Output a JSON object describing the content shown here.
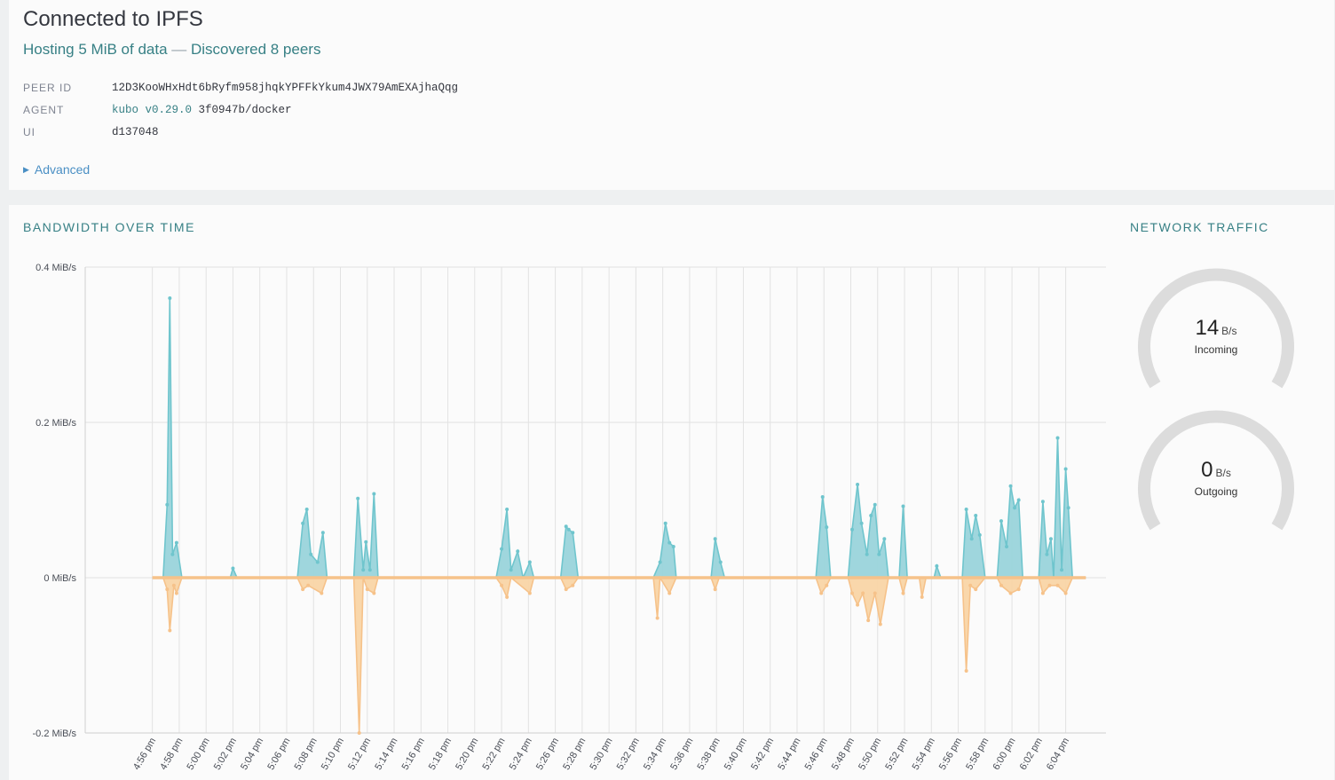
{
  "status": {
    "title": "Connected to IPFS",
    "hosting": "Hosting 5 MiB of data",
    "separator": "—",
    "peers": "Discovered 8 peers",
    "peer_id_key": "PEER ID",
    "peer_id": "12D3KooWHxHdt6bRyfm958jhqkYPFFkYkum4JWX79AmEXAjhaQqg",
    "agent_key": "AGENT",
    "agent_name": "kubo v0.29.0",
    "agent_rest": "3f0947b/docker",
    "ui_key": "UI",
    "ui_value": "d137048",
    "advanced": "Advanced"
  },
  "bandwidth": {
    "title": "BANDWIDTH OVER TIME",
    "colors": {
      "incoming": "#9ad4db",
      "incoming_line": "#6fc5cd",
      "outgoing": "#f9d5a7",
      "outgoing_line": "#f6c28a"
    }
  },
  "traffic": {
    "title": "NETWORK TRAFFIC",
    "incoming": {
      "value": "14",
      "unit": "B/s",
      "label": "Incoming"
    },
    "outgoing": {
      "value": "0",
      "unit": "B/s",
      "label": "Outgoing"
    }
  },
  "chart_data": {
    "type": "area",
    "title": "BANDWIDTH OVER TIME",
    "ylabel": "",
    "ylim": [
      -0.2,
      0.4
    ],
    "yticks": [
      "0.4 MiB/s",
      "0.2 MiB/s",
      "0 MiB/s",
      "-0.2 MiB/s"
    ],
    "ytick_values": [
      0.4,
      0.2,
      0,
      -0.2
    ],
    "xlim_minutes": [
      -5,
      71
    ],
    "xtick_labels": [
      "4:56 pm",
      "4:58 pm",
      "5:00 pm",
      "5:02 pm",
      "5:04 pm",
      "5:06 pm",
      "5:08 pm",
      "5:10 pm",
      "5:12 pm",
      "5:14 pm",
      "5:16 pm",
      "5:18 pm",
      "5:20 pm",
      "5:22 pm",
      "5:24 pm",
      "5:26 pm",
      "5:28 pm",
      "5:30 pm",
      "5:32 pm",
      "5:34 pm",
      "5:36 pm",
      "5:38 pm",
      "5:40 pm",
      "5:42 pm",
      "5:44 pm",
      "5:46 pm",
      "5:48 pm",
      "5:50 pm",
      "5:52 pm",
      "5:54 pm",
      "5:56 pm",
      "5:58 pm",
      "6:00 pm",
      "6:02 pm",
      "6:04 pm"
    ],
    "x_unit": "minutes after 4:56 pm",
    "series": [
      {
        "name": "Incoming",
        "points": [
          [
            0.8,
            0
          ],
          [
            1.1,
            0.094
          ],
          [
            1.3,
            0.36
          ],
          [
            1.5,
            0.03
          ],
          [
            1.8,
            0.045
          ],
          [
            2.2,
            0
          ],
          [
            5.8,
            0
          ],
          [
            6,
            0.012
          ],
          [
            6.3,
            0
          ],
          [
            10.8,
            0
          ],
          [
            11.2,
            0.07
          ],
          [
            11.5,
            0.088
          ],
          [
            11.8,
            0.03
          ],
          [
            12.3,
            0.02
          ],
          [
            12.7,
            0.058
          ],
          [
            13,
            0
          ],
          [
            15,
            0
          ],
          [
            15.3,
            0.102
          ],
          [
            15.7,
            0.01
          ],
          [
            15.9,
            0.046
          ],
          [
            16.2,
            0.01
          ],
          [
            16.5,
            0.108
          ],
          [
            16.8,
            0
          ],
          [
            25.6,
            0
          ],
          [
            26,
            0.037
          ],
          [
            26.4,
            0.088
          ],
          [
            26.7,
            0.01
          ],
          [
            27.2,
            0.034
          ],
          [
            27.6,
            0
          ],
          [
            28.1,
            0.02
          ],
          [
            28.4,
            0
          ],
          [
            30.4,
            0
          ],
          [
            30.8,
            0.066
          ],
          [
            31,
            0.062
          ],
          [
            31.3,
            0.058
          ],
          [
            31.7,
            0
          ],
          [
            37.3,
            0
          ],
          [
            37.8,
            0.02
          ],
          [
            38.2,
            0.07
          ],
          [
            38.5,
            0.045
          ],
          [
            38.8,
            0.04
          ],
          [
            39,
            0
          ],
          [
            41.6,
            0
          ],
          [
            41.9,
            0.05
          ],
          [
            42.3,
            0.02
          ],
          [
            42.6,
            0
          ],
          [
            49.4,
            0
          ],
          [
            49.9,
            0.104
          ],
          [
            50.2,
            0.065
          ],
          [
            50.5,
            0
          ],
          [
            51.8,
            0
          ],
          [
            52.1,
            0.062
          ],
          [
            52.5,
            0.12
          ],
          [
            52.8,
            0.07
          ],
          [
            53.2,
            0.03
          ],
          [
            53.5,
            0.08
          ],
          [
            53.8,
            0.094
          ],
          [
            54.1,
            0.03
          ],
          [
            54.5,
            0.05
          ],
          [
            54.8,
            0
          ],
          [
            55.6,
            0
          ],
          [
            55.9,
            0.092
          ],
          [
            56.2,
            0
          ],
          [
            56.6,
            0
          ],
          [
            58.2,
            0
          ],
          [
            58.4,
            0.015
          ],
          [
            58.7,
            0
          ],
          [
            60.3,
            0
          ],
          [
            60.6,
            0.088
          ],
          [
            61,
            0.05
          ],
          [
            61.3,
            0.08
          ],
          [
            61.6,
            0.055
          ],
          [
            62,
            0
          ],
          [
            62.9,
            0
          ],
          [
            63.2,
            0.073
          ],
          [
            63.6,
            0.04
          ],
          [
            63.9,
            0.118
          ],
          [
            64.2,
            0.09
          ],
          [
            64.5,
            0.1
          ],
          [
            64.8,
            0
          ],
          [
            66,
            0
          ],
          [
            66.3,
            0.098
          ],
          [
            66.6,
            0.03
          ],
          [
            66.9,
            0.05
          ],
          [
            67.1,
            0
          ],
          [
            67.4,
            0.18
          ],
          [
            67.7,
            0.01
          ],
          [
            68,
            0.14
          ],
          [
            68.2,
            0.09
          ],
          [
            68.5,
            0
          ]
        ]
      },
      {
        "name": "Outgoing",
        "points": [
          [
            0.8,
            0
          ],
          [
            1.1,
            -0.015
          ],
          [
            1.3,
            -0.068
          ],
          [
            1.6,
            -0.01
          ],
          [
            1.8,
            -0.02
          ],
          [
            2.2,
            0
          ],
          [
            10.8,
            0
          ],
          [
            11.2,
            -0.015
          ],
          [
            11.6,
            -0.01
          ],
          [
            12.6,
            -0.02
          ],
          [
            13,
            0
          ],
          [
            15,
            0
          ],
          [
            15.4,
            -0.2
          ],
          [
            15.7,
            0
          ],
          [
            16,
            -0.015
          ],
          [
            16.5,
            -0.02
          ],
          [
            16.8,
            0
          ],
          [
            25.6,
            0
          ],
          [
            26,
            -0.01
          ],
          [
            26.4,
            -0.025
          ],
          [
            26.7,
            0
          ],
          [
            28.1,
            -0.02
          ],
          [
            28.4,
            0
          ],
          [
            30.4,
            0
          ],
          [
            30.8,
            -0.015
          ],
          [
            31.3,
            -0.01
          ],
          [
            31.7,
            0
          ],
          [
            37.3,
            0
          ],
          [
            37.6,
            -0.052
          ],
          [
            37.8,
            0
          ],
          [
            38.5,
            -0.02
          ],
          [
            39,
            0
          ],
          [
            41.6,
            0
          ],
          [
            41.9,
            -0.015
          ],
          [
            42.2,
            0
          ],
          [
            49.4,
            0
          ],
          [
            49.8,
            -0.02
          ],
          [
            50.2,
            -0.01
          ],
          [
            50.5,
            0
          ],
          [
            51.8,
            0
          ],
          [
            52.1,
            -0.02
          ],
          [
            52.5,
            -0.035
          ],
          [
            52.9,
            -0.02
          ],
          [
            53.3,
            -0.055
          ],
          [
            53.8,
            -0.02
          ],
          [
            54.2,
            -0.06
          ],
          [
            54.8,
            0
          ],
          [
            55.6,
            0
          ],
          [
            55.9,
            -0.02
          ],
          [
            56.2,
            0
          ],
          [
            57.1,
            0
          ],
          [
            57.3,
            -0.025
          ],
          [
            57.6,
            0
          ],
          [
            60.3,
            0
          ],
          [
            60.6,
            -0.12
          ],
          [
            60.9,
            -0.01
          ],
          [
            61.3,
            -0.015
          ],
          [
            62,
            0
          ],
          [
            62.9,
            0
          ],
          [
            63.2,
            -0.01
          ],
          [
            63.9,
            -0.02
          ],
          [
            64.5,
            -0.015
          ],
          [
            64.8,
            0
          ],
          [
            66,
            0
          ],
          [
            66.3,
            -0.02
          ],
          [
            66.8,
            -0.01
          ],
          [
            67.4,
            -0.01
          ],
          [
            68,
            -0.02
          ],
          [
            68.5,
            0
          ]
        ]
      }
    ],
    "legend": "none",
    "grid": true
  }
}
